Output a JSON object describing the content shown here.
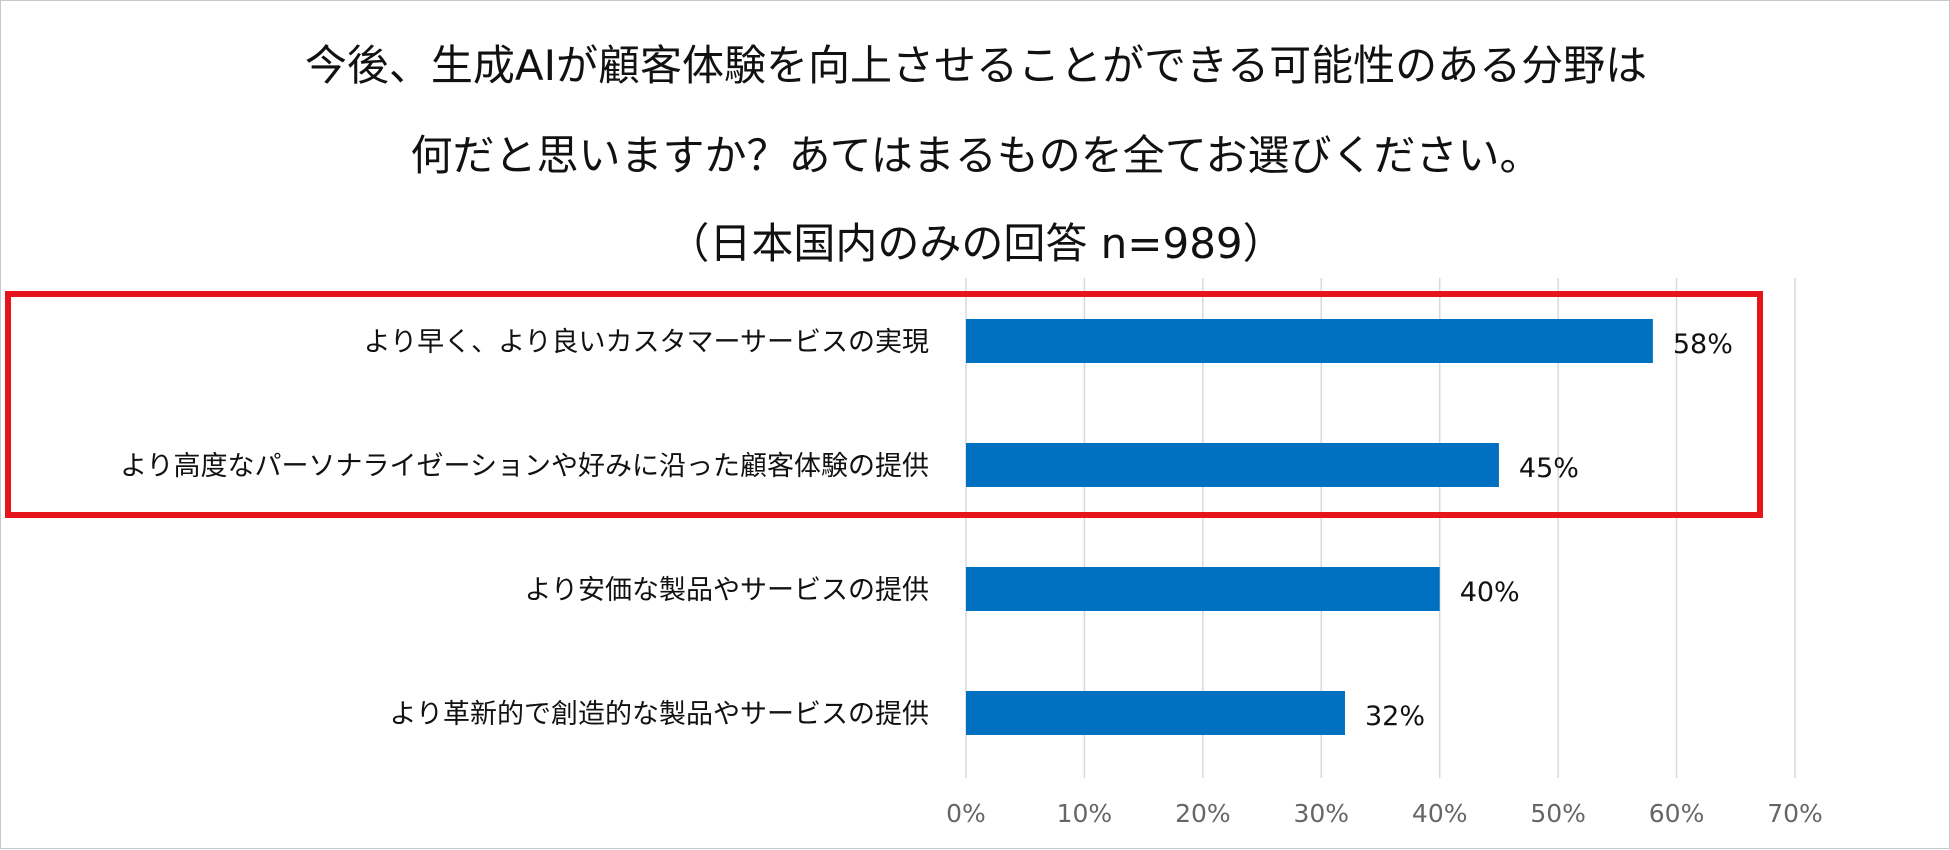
{
  "chart_data": {
    "type": "bar",
    "orientation": "horizontal",
    "title_lines": [
      "今後、生成AIが顧客体験を向上させることができる可能性のある分野は",
      "何だと思いますか？あてはまるものを全てお選びください。",
      "（日本国内のみの回答 n=989）"
    ],
    "categories": [
      "より早く、より良いカスタマーサービスの実現",
      "より高度なパーソナライゼーションや好みに沿った顧客体験の提供",
      "より安価な製品やサービスの提供",
      "より革新的で創造的な製品やサービスの提供"
    ],
    "values": [
      58,
      45,
      40,
      32
    ],
    "value_labels": [
      "58%",
      "45%",
      "40%",
      "32%"
    ],
    "xlim": [
      0,
      70
    ],
    "x_ticks": [
      0,
      10,
      20,
      30,
      40,
      50,
      60,
      70
    ],
    "x_tick_labels": [
      "0%",
      "10%",
      "20%",
      "30%",
      "40%",
      "50%",
      "60%",
      "70%"
    ],
    "grid": "vertical",
    "highlight": {
      "categories": [
        0,
        1
      ],
      "color": "#e8141b"
    },
    "bar_color": "#0070c0",
    "gridline_color": "#d9d9d9"
  }
}
